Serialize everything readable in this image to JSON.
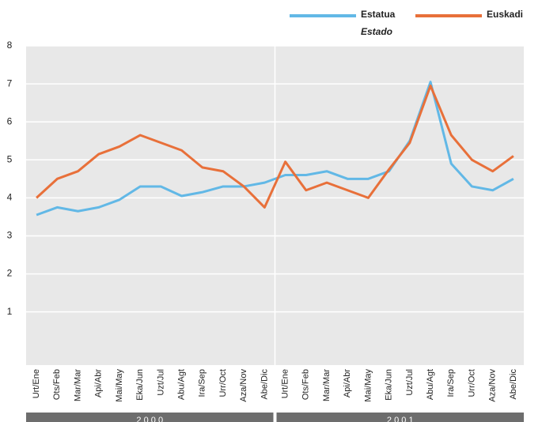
{
  "chart_data": {
    "type": "line",
    "categories": [
      "Urt/Ene",
      "Ots/Feb",
      "Mar/Mar",
      "Api/Abr",
      "Mai/May",
      "Eka/Jun",
      "Uzt/Jul",
      "Abu/Agt",
      "Ira/Sep",
      "Urr/Oct",
      "Aza/Nov",
      "Abe/Dic",
      "Urt/Ene",
      "Ots/Feb",
      "Mar/Mar",
      "Api/Abr",
      "Mai/May",
      "Eka/Jun",
      "Uzt/Jul",
      "Abu/Agt",
      "Ira/Sep",
      "Urr/Oct",
      "Aza/Nov",
      "Abe/Dic"
    ],
    "groups": [
      "2 0 0 0",
      "2 0 0 1"
    ],
    "series": [
      {
        "name": "Estatua",
        "name_es": "Estado",
        "color": "#62b8e6",
        "values": [
          3.55,
          3.75,
          3.65,
          3.75,
          3.95,
          4.3,
          4.3,
          4.05,
          4.15,
          4.3,
          4.3,
          4.4,
          4.6,
          4.6,
          4.7,
          4.5,
          4.5,
          4.7,
          5.5,
          7.05,
          4.9,
          4.3,
          4.2,
          4.5
        ]
      },
      {
        "name": "Euskadi",
        "color": "#e8703a",
        "values": [
          4.0,
          4.5,
          4.7,
          5.15,
          5.35,
          5.65,
          5.45,
          5.25,
          4.8,
          4.7,
          4.3,
          3.75,
          4.95,
          4.2,
          4.4,
          4.2,
          4.0,
          4.75,
          5.45,
          6.95,
          5.65,
          5.0,
          4.7,
          5.1
        ]
      }
    ],
    "ylim": [
      -0.4,
      8
    ],
    "yticks": [
      1,
      2,
      3,
      4,
      5,
      6,
      7,
      8
    ],
    "grid": true
  }
}
